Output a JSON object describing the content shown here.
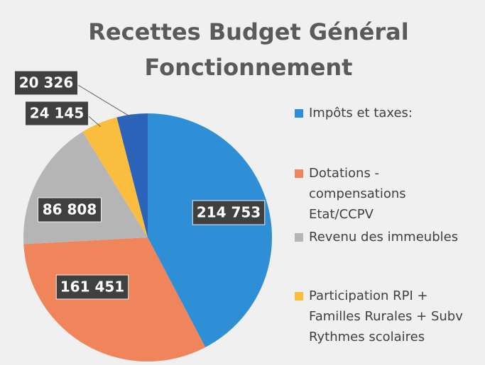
{
  "chart_data": {
    "type": "pie",
    "title": "Recettes Budget Général Fonctionnement",
    "categories": [
      "Impôts et taxes:",
      "Dotations - compensations Etat/CCPV",
      "Revenu des immeubles",
      "Participation RPI + Familles Rurales + Subv Rythmes scolaires",
      null
    ],
    "values": [
      214753,
      161451,
      86808,
      24145,
      20326
    ],
    "value_labels": [
      "214 753",
      "161 451",
      "86 808",
      "24 145",
      "20 326"
    ],
    "colors": [
      "#2e8fd6",
      "#f0845a",
      "#b5b5b5",
      "#fbbd3e",
      "#2a63b8"
    ],
    "legend": "right"
  }
}
